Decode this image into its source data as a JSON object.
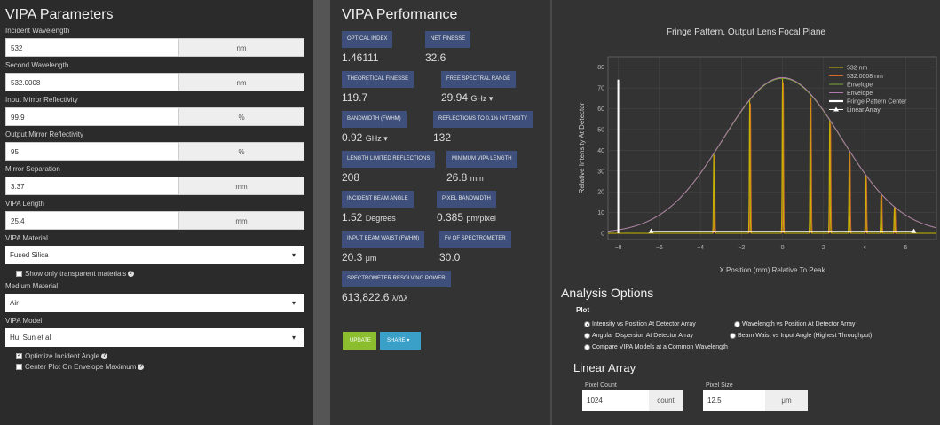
{
  "params": {
    "title": "VIPA Parameters",
    "fields": [
      {
        "label": "Incident Wavelength",
        "value": "532",
        "unit": "nm"
      },
      {
        "label": "Second Wavelength",
        "value": "532.0008",
        "unit": "nm"
      },
      {
        "label": "Input Mirror Reflectivity",
        "value": "99.9",
        "unit": "%"
      },
      {
        "label": "Output Mirror Reflectivity",
        "value": "95",
        "unit": "%"
      },
      {
        "label": "Mirror Separation",
        "value": "3.37",
        "unit": "mm"
      },
      {
        "label": "VIPA Length",
        "value": "25.4",
        "unit": "mm"
      }
    ],
    "material_label": "VIPA Material",
    "material_value": "Fused Silica",
    "transparent_label": "Show only transparent materials",
    "medium_label": "Medium Material",
    "medium_value": "Air",
    "model_label": "VIPA Model",
    "model_value": "Hu, Sun et al",
    "optimize_label": "Optimize Incident Angle",
    "center_label": "Center Plot On Envelope Maximum"
  },
  "performance": {
    "title": "VIPA Performance",
    "metrics": [
      {
        "label": "Optical Index",
        "value": "1.46111",
        "unit": ""
      },
      {
        "label": "Net Finesse",
        "value": "32.6",
        "unit": ""
      },
      {
        "label": "Theoretical Finesse",
        "value": "119.7",
        "unit": ""
      },
      {
        "label": "Free Spectral Range",
        "value": "29.94",
        "unit": "GHz ▾"
      },
      {
        "label": "Bandwidth (FWHM)",
        "value": "0.92",
        "unit": "GHz ▾"
      },
      {
        "label": "Reflections to 0.1% Intensity",
        "value": "132",
        "unit": ""
      },
      {
        "label": "Length Limited Reflections",
        "value": "208",
        "unit": ""
      },
      {
        "label": "Minimum VIPA Length",
        "value": "26.8",
        "unit": "mm"
      },
      {
        "label": "Incident Beam Angle",
        "value": "1.52",
        "unit": "Degrees"
      },
      {
        "label": "Pixel Bandwidth",
        "value": "0.385",
        "unit": "pm/pixel"
      },
      {
        "label": "Input Beam Waist (FWHM)",
        "value": "20.3",
        "unit": "μm"
      },
      {
        "label": "F# of Spectrometer",
        "value": "30.0",
        "unit": ""
      },
      {
        "label": "Spectrometer Resolving Power",
        "value": "613,822.6",
        "unit": "λ/Δλ"
      }
    ],
    "update_label": "UPDATE",
    "share_label": "SHARE ▾"
  },
  "chart_data": {
    "type": "line",
    "title": "Fringe Pattern, Output Lens Focal Plane",
    "xlabel": "X Position (mm) Relative To Peak",
    "ylabel": "Relative Intensity At Detector",
    "xlim": [
      -8.5,
      7.5
    ],
    "ylim": [
      -3,
      85
    ],
    "x_ticks": [
      -8,
      -6,
      -4,
      -2,
      0,
      2,
      4,
      6
    ],
    "y_ticks": [
      0,
      10,
      20,
      30,
      40,
      50,
      60,
      70,
      80
    ],
    "grid": true,
    "legend_position": "top-right",
    "legend": [
      "532 nm",
      "532.0008 nm",
      "Envelope",
      "Envelope",
      "Fringe Pattern Center",
      "Linear Array"
    ],
    "colors": [
      "#c8b400",
      "#d06a2a",
      "#7fa83a",
      "#b07ab0",
      "#ffffff",
      "#ffffff"
    ],
    "envelope": {
      "peak": 75,
      "center": 0,
      "sigma": 2.9
    },
    "fringe_positions": [
      -3.35,
      -1.6,
      0,
      1.35,
      2.3,
      3.25,
      4.05,
      4.8,
      5.45
    ],
    "fringe_center": {
      "x": -8,
      "y": 74
    },
    "linear_array": {
      "x": [
        -6.4,
        6.4
      ],
      "y": [
        1,
        1
      ]
    }
  },
  "analysis": {
    "title": "Analysis Options",
    "plot_label": "Plot",
    "options": [
      "Intensity vs Position At Detector Array",
      "Wavelength vs Position At Detector Array",
      "Angular Dispersion At Detector Array",
      "Beam Waist vs Input Angle (Highest Throughput)",
      "Compare VIPA Models at a Common Wavelength"
    ],
    "linear_array_title": "Linear Array",
    "pixel_count_label": "Pixel Count",
    "pixel_count_value": "1024",
    "pixel_count_unit": "count",
    "pixel_size_label": "Pixel Size",
    "pixel_size_value": "12.5",
    "pixel_size_unit": "μm"
  }
}
